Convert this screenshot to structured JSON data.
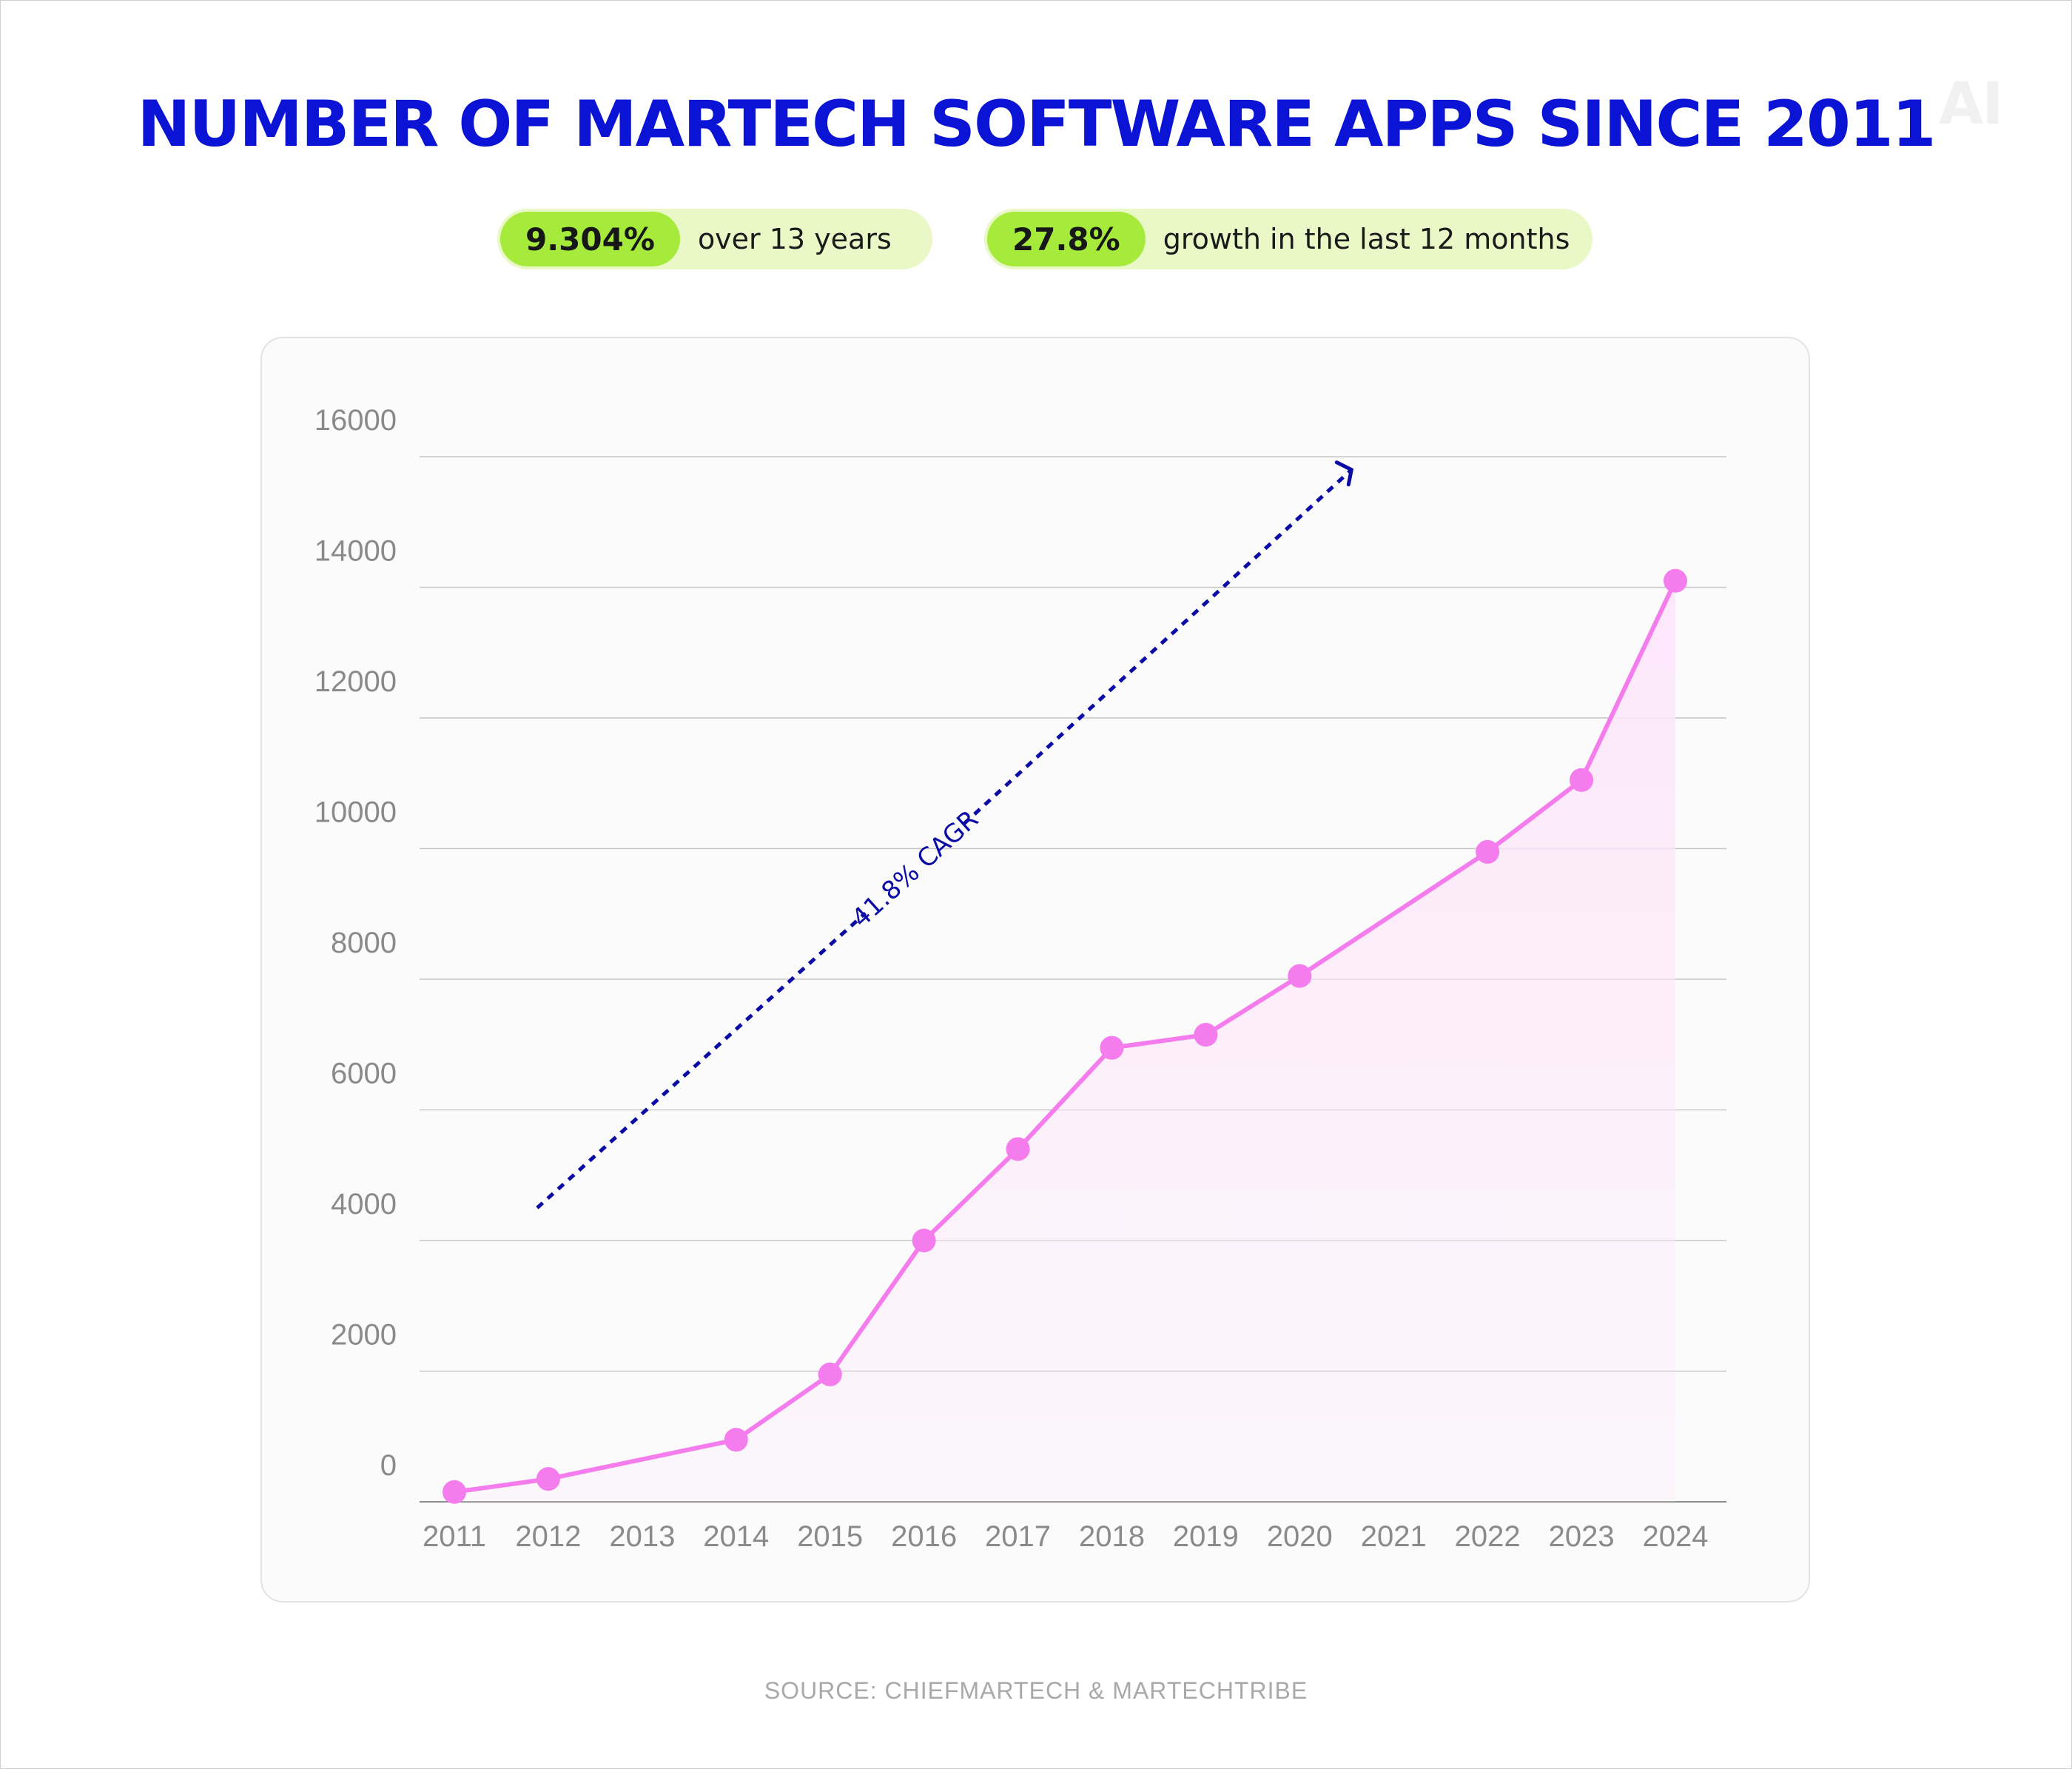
{
  "watermark": "AI",
  "stats": [
    {
      "value": "9.304%",
      "text": "over 13 years"
    },
    {
      "value": "27.8%",
      "text": "growth in the last 12 months"
    }
  ],
  "source": "SOURCE: CHIEFMARTECH & MARTECHTRIBE",
  "colors": {
    "title": "#0b13d4",
    "line": "#f47cec",
    "area": "#fce6fa",
    "arrow": "#0a0aa6",
    "pill_bg": "#e9f8c6",
    "pill_accent": "#a6ea3b"
  },
  "chart_data": {
    "type": "line",
    "title": "NUMBER OF MARTECH SOFTWARE APPS SINCE 2011",
    "xlabel": "",
    "ylabel": "",
    "x": [
      2011,
      2012,
      2013,
      2014,
      2015,
      2016,
      2017,
      2018,
      2019,
      2020,
      2021,
      2022,
      2023,
      2024
    ],
    "x_tick_labels": [
      "2011",
      "2012",
      "2013",
      "2014",
      "2015",
      "2016",
      "2017",
      "2018",
      "2019",
      "2020",
      "2021",
      "2022",
      "2023",
      "2024"
    ],
    "ylim": [
      0,
      16000
    ],
    "y_ticks": [
      0,
      2000,
      4000,
      6000,
      8000,
      10000,
      12000,
      14000,
      16000
    ],
    "y_tick_labels": [
      "0",
      "2000",
      "4000",
      "6000",
      "8000",
      "10000",
      "12000",
      "14000",
      "16000"
    ],
    "grid": true,
    "series": [
      {
        "x": [
          2011,
          2012,
          2014,
          2015,
          2016,
          2017,
          2018,
          2019,
          2020,
          2022,
          2023,
          2024
        ],
        "values": [
          150,
          350,
          950,
          1950,
          4000,
          5400,
          6950,
          7150,
          8050,
          9950,
          11050,
          14100
        ]
      }
    ],
    "annotations": [
      {
        "text": "41.8% CAGR",
        "type": "dashed-arrow",
        "from": [
          2012,
          4500
        ],
        "to": [
          2020,
          15800
        ]
      }
    ]
  }
}
